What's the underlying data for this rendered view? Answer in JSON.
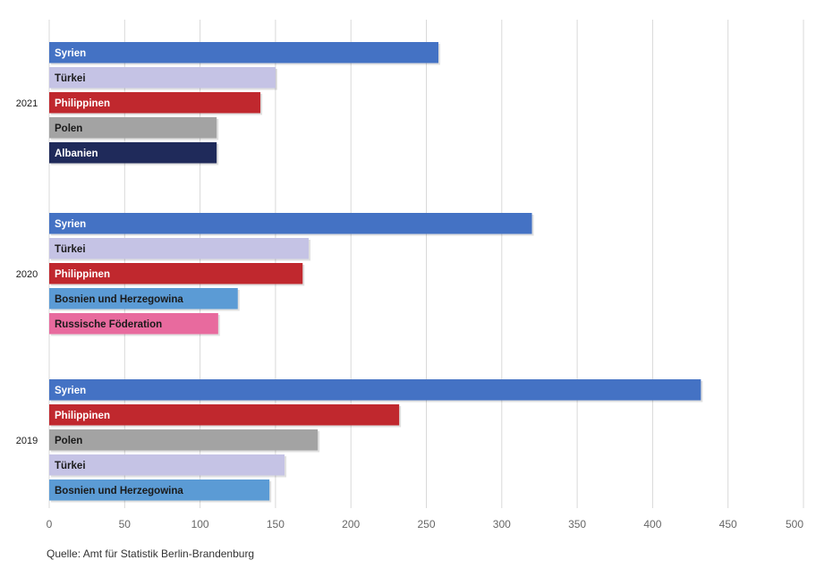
{
  "source": "Quelle: Amt für Statistik Berlin-Brandenburg",
  "colors": {
    "Syrien": "#4472c4",
    "Türkei": "#c5c3e5",
    "Philippinen": "#c0282e",
    "Polen": "#a3a3a3",
    "Albanien": "#1f2a5a",
    "Bosnien und Herzegowina": "#5b9bd5",
    "Russische Föderation": "#e86a9e",
    "gridline": "#d9d9d9",
    "text_dark": "#1a1a1a",
    "text_light": "#ffffff"
  },
  "chart_data": {
    "type": "bar",
    "orientation": "horizontal",
    "title": "",
    "xlabel": "",
    "ylabel": "",
    "xlim": [
      0,
      500
    ],
    "x_ticks": [
      0,
      50,
      100,
      150,
      200,
      250,
      300,
      350,
      400,
      450,
      500
    ],
    "grid": "vertical",
    "legend": "none",
    "groups": [
      {
        "year": "2021",
        "bars": [
          {
            "label": "Syrien",
            "value": 258
          },
          {
            "label": "Türkei",
            "value": 150
          },
          {
            "label": "Philippinen",
            "value": 140
          },
          {
            "label": "Polen",
            "value": 111
          },
          {
            "label": "Albanien",
            "value": 111
          }
        ]
      },
      {
        "year": "2020",
        "bars": [
          {
            "label": "Syrien",
            "value": 320
          },
          {
            "label": "Türkei",
            "value": 172
          },
          {
            "label": "Philippinen",
            "value": 168
          },
          {
            "label": "Bosnien und Herzegowina",
            "value": 125
          },
          {
            "label": "Russische Föderation",
            "value": 112
          }
        ]
      },
      {
        "year": "2019",
        "bars": [
          {
            "label": "Syrien",
            "value": 432
          },
          {
            "label": "Philippinen",
            "value": 232
          },
          {
            "label": "Polen",
            "value": 178
          },
          {
            "label": "Türkei",
            "value": 156
          },
          {
            "label": "Bosnien und Herzegowina",
            "value": 146
          }
        ]
      }
    ]
  }
}
